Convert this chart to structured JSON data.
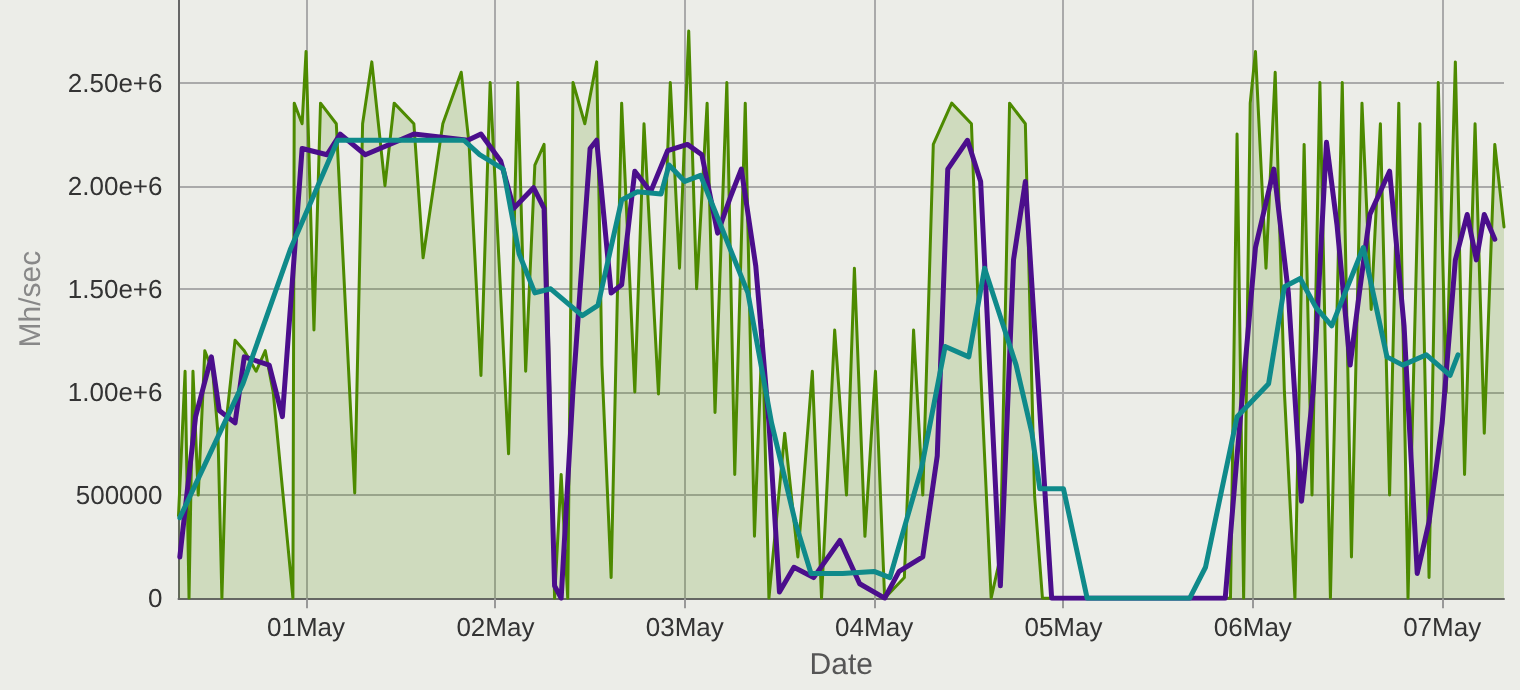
{
  "chart_data": {
    "type": "line",
    "xlabel": "Date",
    "ylabel": "Mh/sec",
    "xlim": [
      "--04-30T07:50",
      "--05-07T07:50"
    ],
    "xticks": [
      {
        "value": "--05-01",
        "label": "01May"
      },
      {
        "value": "--05-02",
        "label": "02May"
      },
      {
        "value": "--05-03",
        "label": "03May"
      },
      {
        "value": "--05-04",
        "label": "04May"
      },
      {
        "value": "--05-05",
        "label": "05May"
      },
      {
        "value": "--05-06",
        "label": "06May"
      },
      {
        "value": "--05-07",
        "label": "07May"
      }
    ],
    "ylim": [
      0,
      2900000
    ],
    "yticks": [
      0,
      500000,
      {
        "value": 1000000,
        "label": "1.00e+6"
      },
      {
        "value": 1500000,
        "label": "1.50e+6"
      },
      {
        "value": 2000000,
        "label": "2.00e+6"
      },
      {
        "value": 2500000,
        "label": "2.50e+6"
      }
    ],
    "grid": true,
    "marker": "none",
    "line_style": "solid",
    "series": [
      {
        "type": "area",
        "color": "#4d8a00",
        "x": [
          "--04-30T07:50",
          "--04-30T08:40",
          "--04-30T09:10",
          "--04-30T09:40",
          "--04-30T10:20",
          "--04-30T11:10",
          "--04-30T12:10",
          "--04-30T12:50",
          "--04-30T13:20",
          "--04-30T14:00",
          "--04-30T15:00",
          "--04-30T16:10",
          "--04-30T17:40",
          "--04-30T18:50",
          "--04-30T19:50",
          "--04-30T21:20",
          "--04-30T22:20",
          "--04-30T22:30",
          "--04-30T23:30",
          "--05-01T00:00",
          "--05-01T01:00",
          "--05-01T01:50",
          "--05-01T03:50",
          "--05-01T06:10",
          "--05-01T07:10",
          "--05-01T08:20",
          "--05-01T10:00",
          "--05-01T11:10",
          "--05-01T13:40",
          "--05-01T14:50",
          "--05-01T17:20",
          "--05-01T19:40",
          "--05-01T20:40",
          "--05-01T22:10",
          "--05-01T23:20",
          "--05-02T01:40",
          "--05-02T02:50",
          "--05-02T03:50",
          "--05-02T05:00",
          "--05-02T06:10",
          "--05-02T07:30",
          "--05-02T08:20",
          "--05-02T09:10",
          "--05-02T09:50",
          "--05-02T11:20",
          "--05-02T12:50",
          "--05-02T13:30",
          "--05-02T14:40",
          "--05-02T16:00",
          "--05-02T17:40",
          "--05-02T18:50",
          "--05-02T20:40",
          "--05-02T22:10",
          "--05-02T23:20",
          "--05-03T00:30",
          "--05-03T01:30",
          "--05-03T02:50",
          "--05-03T03:50",
          "--05-03T05:20",
          "--05-03T06:20",
          "--05-03T07:40",
          "--05-03T08:50",
          "--05-03T09:50",
          "--05-03T10:40",
          "--05-03T12:40",
          "--05-03T14:20",
          "--05-03T16:10",
          "--05-03T17:20",
          "--05-03T19:00",
          "--05-03T20:30",
          "--05-03T21:30",
          "--05-03T22:50",
          "--05-04T00:10",
          "--05-04T01:20",
          "--05-04T03:50",
          "--05-04T05:00",
          "--05-04T06:10",
          "--05-04T07:30",
          "--05-04T09:50",
          "--05-04T12:20",
          "--05-04T13:30",
          "--05-04T14:50",
          "--05-04T16:00",
          "--05-04T17:10",
          "--05-04T19:10",
          "--05-04T20:20",
          "--05-04T21:20",
          "--05-05T21:10",
          "--05-05T22:00",
          "--05-05T22:50",
          "--05-05T23:40",
          "--05-06T00:20",
          "--05-06T01:40",
          "--05-06T02:50",
          "--05-06T04:00",
          "--05-06T05:20",
          "--05-06T06:30",
          "--05-06T07:30",
          "--05-06T08:30",
          "--05-06T09:50",
          "--05-06T11:20",
          "--05-06T12:30",
          "--05-06T13:50",
          "--05-06T15:00",
          "--05-06T16:10",
          "--05-06T17:20",
          "--05-06T18:30",
          "--05-06T19:40",
          "--05-06T21:10",
          "--05-06T22:20",
          "--05-06T23:30",
          "--05-07T00:30",
          "--05-07T01:40",
          "--05-07T02:50",
          "--05-07T04:10",
          "--05-07T05:20",
          "--05-07T06:40",
          "--05-07T07:50"
        ],
        "values": [
          400000,
          1100000,
          0,
          1100000,
          500000,
          1200000,
          1100000,
          800000,
          0,
          900000,
          1250000,
          1200000,
          1100000,
          1200000,
          1000000,
          400000,
          0,
          2400000,
          2300000,
          2650000,
          1300000,
          2400000,
          2300000,
          510000,
          2300000,
          2600000,
          2000000,
          2400000,
          2300000,
          1650000,
          2300000,
          2550000,
          2200000,
          1080000,
          2500000,
          700000,
          2500000,
          1100000,
          2100000,
          2200000,
          0,
          600000,
          0,
          2500000,
          2300000,
          2600000,
          1130000,
          100000,
          2400000,
          1000000,
          2300000,
          990000,
          2500000,
          1600000,
          2750000,
          1500000,
          2400000,
          900000,
          2500000,
          600000,
          2400000,
          300000,
          1300000,
          0,
          800000,
          200000,
          1100000,
          0,
          1300000,
          500000,
          1600000,
          300000,
          1100000,
          0,
          100000,
          1300000,
          500000,
          2200000,
          2400000,
          2300000,
          1100000,
          0,
          200000,
          2400000,
          2300000,
          500000,
          0,
          0,
          2250000,
          0,
          2400000,
          2650000,
          1600000,
          2550000,
          1000000,
          0,
          2200000,
          500000,
          2500000,
          0,
          2500000,
          200000,
          2400000,
          1400000,
          2300000,
          500000,
          2400000,
          0,
          2300000,
          100000,
          2500000,
          1000000,
          2600000,
          600000,
          2300000,
          800000,
          2200000,
          1800000
        ]
      },
      {
        "color": "#4b0e8c",
        "x": [
          "--04-30T08:00",
          "--04-30T10:00",
          "--04-30T12:00",
          "--04-30T13:00",
          "--04-30T15:00",
          "--04-30T16:10",
          "--04-30T19:20",
          "--04-30T21:00",
          "--04-30T23:30",
          "--05-01T02:40",
          "--05-01T04:20",
          "--05-01T07:30",
          "--05-01T13:40",
          "--05-01T20:30",
          "--05-01T22:10",
          "--05-02T00:40",
          "--05-02T02:20",
          "--05-02T04:50",
          "--05-02T06:10",
          "--05-02T07:30",
          "--05-02T08:20",
          "--05-02T09:50",
          "--05-02T12:00",
          "--05-02T12:50",
          "--05-02T14:40",
          "--05-02T16:00",
          "--05-02T17:40",
          "--05-02T19:40",
          "--05-02T21:50",
          "--05-03T00:20",
          "--05-03T02:10",
          "--05-03T04:10",
          "--05-03T05:50",
          "--05-03T07:10",
          "--05-03T09:00",
          "--05-03T10:40",
          "--05-03T12:00",
          "--05-03T13:50",
          "--05-03T16:20",
          "--05-03T19:40",
          "--05-03T22:10",
          "--05-04T01:20",
          "--05-04T03:10",
          "--05-04T06:10",
          "--05-04T08:00",
          "--05-04T09:20",
          "--05-04T11:50",
          "--05-04T13:30",
          "--05-04T16:00",
          "--05-04T17:40",
          "--05-04T19:10",
          "--05-04T20:50",
          "--05-04T22:30",
          "--05-05T20:30",
          "--05-05T22:00",
          "--05-06T00:20",
          "--05-06T02:40",
          "--05-06T04:30",
          "--05-06T06:10",
          "--05-06T07:40",
          "--05-06T09:20",
          "--05-06T10:40",
          "--05-06T12:20",
          "--05-06T13:30",
          "--05-06T14:50",
          "--05-06T17:20",
          "--05-06T19:10",
          "--05-06T20:50",
          "--05-06T22:20",
          "--05-07T00:00",
          "--05-07T01:40",
          "--05-07T03:10",
          "--05-07T04:20",
          "--05-07T05:20",
          "--05-07T06:40"
        ],
        "values": [
          200000,
          880000,
          1170000,
          910000,
          850000,
          1170000,
          1130000,
          880000,
          2180000,
          2150000,
          2250000,
          2150000,
          2250000,
          2220000,
          2250000,
          2120000,
          1890000,
          1990000,
          1890000,
          60000,
          0,
          1010000,
          2180000,
          2220000,
          1480000,
          1520000,
          2070000,
          1970000,
          2170000,
          2200000,
          2150000,
          1770000,
          1950000,
          2080000,
          1610000,
          850000,
          30000,
          150000,
          100000,
          280000,
          70000,
          0,
          130000,
          200000,
          690000,
          2080000,
          2220000,
          2020000,
          60000,
          1640000,
          2020000,
          1010000,
          0,
          0,
          690000,
          1700000,
          2080000,
          1480000,
          470000,
          1010000,
          2210000,
          1810000,
          1130000,
          1480000,
          1860000,
          2070000,
          1320000,
          120000,
          370000,
          850000,
          1640000,
          1860000,
          1640000,
          1860000,
          1740000
        ]
      },
      {
        "color": "#0f8a8a",
        "x": [
          "--04-30T08:00",
          "--04-30T16:00",
          "--04-30T22:00",
          "--05-01T04:00",
          "--05-01T20:00",
          "--05-01T22:00",
          "--05-02T01:00",
          "--05-02T03:00",
          "--05-02T05:00",
          "--05-02T07:00",
          "--05-02T11:00",
          "--05-02T13:00",
          "--05-02T16:00",
          "--05-02T18:00",
          "--05-02T21:00",
          "--05-02T22:00",
          "--05-03T00:00",
          "--05-03T02:00",
          "--05-03T04:00",
          "--05-03T08:00",
          "--05-03T11:00",
          "--05-03T14:00",
          "--05-03T16:00",
          "--05-03T20:00",
          "--05-04T00:00",
          "--05-04T02:00",
          "--05-04T06:00",
          "--05-04T09:00",
          "--05-04T12:00",
          "--05-04T14:00",
          "--05-04T18:00",
          "--05-04T20:00",
          "--05-04T21:00",
          "--05-05T00:00",
          "--05-05T03:00",
          "--05-05T16:00",
          "--05-05T18:00",
          "--05-05T22:00",
          "--05-06T02:00",
          "--05-06T04:00",
          "--05-06T06:00",
          "--05-06T08:00",
          "--05-06T10:00",
          "--05-06T14:00",
          "--05-06T17:00",
          "--05-06T19:00",
          "--05-06T22:00",
          "--05-07T01:00",
          "--05-07T02:00"
        ],
        "values": [
          390000,
          1040000,
          1690000,
          2220000,
          2220000,
          2150000,
          2080000,
          1670000,
          1480000,
          1500000,
          1370000,
          1420000,
          1930000,
          1970000,
          1960000,
          2100000,
          2020000,
          2050000,
          1860000,
          1480000,
          850000,
          370000,
          120000,
          120000,
          130000,
          100000,
          630000,
          1220000,
          1170000,
          1600000,
          1130000,
          800000,
          530000,
          530000,
          0,
          0,
          150000,
          880000,
          1040000,
          1510000,
          1550000,
          1410000,
          1320000,
          1700000,
          1170000,
          1130000,
          1180000,
          1080000,
          1180000
        ]
      }
    ]
  }
}
